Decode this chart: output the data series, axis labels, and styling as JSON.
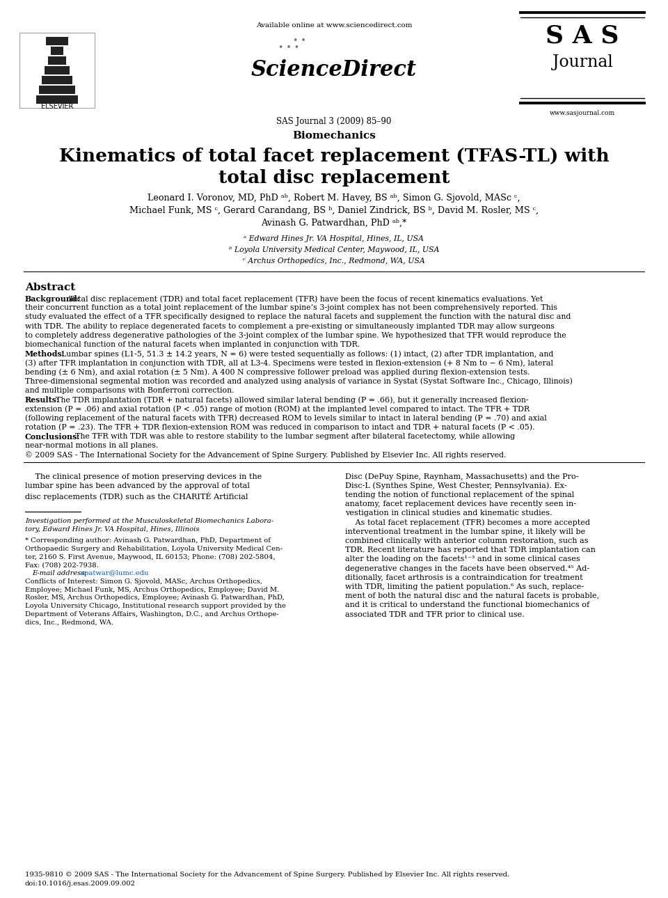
{
  "background_color": "#ffffff",
  "header": {
    "available_online": "Available online at www.sciencedirect.com",
    "journal_issue": "SAS Journal 3 (2009) 85–90",
    "section": "Biomechanics",
    "sas_lines": [
      "S A S",
      "Journal"
    ],
    "sas_website": "www.sasjournal.com"
  },
  "title_line1": "Kinematics of total facet replacement (TFAS-TL) with",
  "title_line2": "total disc replacement",
  "author_line1": "Leonard I. Voronov, MD, PhD ᵃᵇ, Robert M. Havey, BS ᵃᵇ, Simon G. Sjovold, MASc ᶜ,",
  "author_line2": "Michael Funk, MS ᶜ, Gerard Carandang, BS ᵇ, Daniel Zindrick, BS ᵇ, David M. Rosler, MS ᶜ,",
  "author_line3": "Avinash G. Patwardhan, PhD ᵃᵇ,*",
  "aff1": "ᵃ Edward Hines Jr. VA Hospital, Hines, IL, USA",
  "aff2": "ᵇ Loyola University Medical Center, Maywood, IL, USA",
  "aff3": "ᶜ Archus Orthopedics, Inc., Redmond, WA, USA",
  "abstract_title": "Abstract",
  "bkg_label": "Background:",
  "bkg_lines": [
    "Total disc replacement (TDR) and total facet replacement (TFR) have been the focus of recent kinematics evaluations. Yet",
    "their concurrent function as a total joint replacement of the lumbar spine’s 3-joint complex has not been comprehensively reported. This",
    "study evaluated the effect of a TFR specifically designed to replace the natural facets and supplement the function with the natural disc and",
    "with TDR. The ability to replace degenerated facets to complement a pre-existing or simultaneously implanted TDR may allow surgeons",
    "to completely address degenerative pathologies of the 3-joint complex of the lumbar spine. We hypothesized that TFR would reproduce the",
    "biomechanical function of the natural facets when implanted in conjunction with TDR."
  ],
  "meth_label": "Methods:",
  "meth_lines": [
    "Lumbar spines (L1-5, 51.3 ± 14.2 years, N = 6) were tested sequentially as follows: (1) intact, (2) after TDR implantation, and",
    "(3) after TFR implantation in conjunction with TDR, all at L3-4. Specimens were tested in flexion-extension (+ 8 Nm to − 6 Nm), lateral",
    "bending (± 6 Nm), and axial rotation (± 5 Nm). A 400 N compressive follower preload was applied during flexion-extension tests.",
    "Three-dimensional segmental motion was recorded and analyzed using analysis of variance in Systat (Systat Software Inc., Chicago, Illinois)",
    "and multiple comparisons with Bonferroni correction."
  ],
  "res_label": "Results:",
  "res_lines": [
    "The TDR implantation (TDR + natural facets) allowed similar lateral bending (P = .66), but it generally increased flexion-",
    "extension (P = .06) and axial rotation (P < .05) range of motion (ROM) at the implanted level compared to intact. The TFR + TDR",
    "(following replacement of the natural facets with TFR) decreased ROM to levels similar to intact in lateral bending (P = .70) and axial",
    "rotation (P = .23). The TFR + TDR flexion-extension ROM was reduced in comparison to intact and TDR + natural facets (P < .05)."
  ],
  "con_label": "Conclusions:",
  "con_lines": [
    "The TFR with TDR was able to restore stability to the lumbar segment after bilateral facetectomy, while allowing",
    "near-normal motions in all planes."
  ],
  "copyright_line": "© 2009 SAS - The International Society for the Advancement of Spine Surgery. Published by Elsevier Inc. All rights reserved.",
  "body_col1_lines": [
    "    The clinical presence of motion preserving devices in the",
    "lumbar spine has been advanced by the approval of total",
    "disc replacements (TDR) such as the CHARITÉ Artificial"
  ],
  "body_col2_lines": [
    "Disc (DePuy Spine, Raynham, Massachusetts) and the Pro-",
    "Disc-L (Synthes Spine, West Chester, Pennsylvania). Ex-",
    "tending the notion of functional replacement of the spinal",
    "anatomy, facet replacement devices have recently seen in-",
    "vestigation in clinical studies and kinematic studies.",
    "    As total facet replacement (TFR) becomes a more accepted",
    "interventional treatment in the lumbar spine, it likely will be",
    "combined clinically with anterior column restoration, such as",
    "TDR. Recent literature has reported that TDR implantation can",
    "alter the loading on the facets¹⁻³ and in some clinical cases",
    "degenerative changes in the facets have been observed.⁴⁵ Ad-",
    "ditionally, facet arthrosis is a contraindication for treatment",
    "with TDR, limiting the patient population.⁶ As such, replace-",
    "ment of both the natural disc and the natural facets is probable,",
    "and it is critical to understand the functional biomechanics of",
    "associated TDR and TFR prior to clinical use."
  ],
  "fn_inv_lines": [
    "Investigation performed at the Musculoskeletal Biomechanics Labora-",
    "tory, Edward Hines Jr. VA Hospital, Hines, Illinois"
  ],
  "fn_corr_lines": [
    "* Corresponding author: Avinash G. Patwardhan, PhD, Department of",
    "Orthopaedic Surgery and Rehabilitation, Loyola University Medical Cen-",
    "ter, 2160 S. First Avenue, Maywood, IL 60153; Phone: (708) 202-5804,",
    "Fax: (708) 202-7938."
  ],
  "fn_email_label": "E-mail address:",
  "fn_email": "apatwar@lumc.edu",
  "fn_conf_lines": [
    "Conflicts of Interest: Simon G. Sjovold, MASc, Archus Orthopedics,",
    "Employee; Michael Funk, MS, Archus Orthopedics, Employee; David M.",
    "Rosler, MS, Archus Orthopedics, Employee; Avinash G. Patwardhan, PhD,",
    "Loyola University Chicago, Institutional research support provided by the",
    "Department of Veterans Affairs, Washington, D.C., and Archus Orthope-",
    "dics, Inc., Redmond, WA."
  ],
  "footer_copy": "1935-9810 © 2009 SAS - The International Society for the Advancement of Spine Surgery. Published by Elsevier Inc. All rights reserved.",
  "footer_doi": "doi:10.1016/j.esas.2009.09.002"
}
